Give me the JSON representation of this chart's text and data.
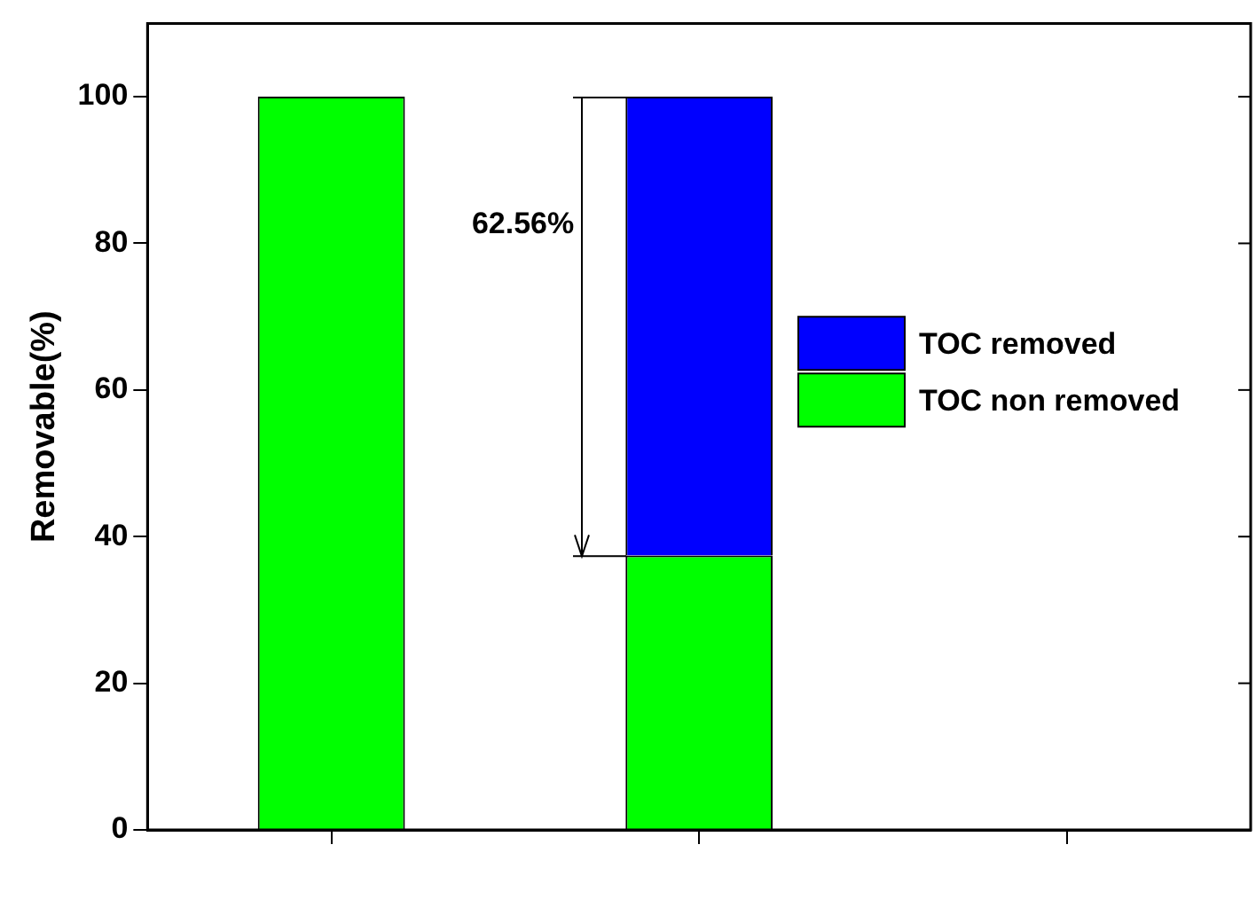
{
  "chart_data": {
    "type": "bar",
    "stacked": true,
    "ylabel": "Removable(%)",
    "categories": [
      null,
      null,
      null
    ],
    "series": [
      {
        "name": "TOC non removed",
        "color": "#00ff00",
        "values": [
          100,
          37.44,
          null
        ]
      },
      {
        "name": "TOC removed",
        "color": "#0000ff",
        "values": [
          null,
          62.56,
          null
        ]
      }
    ],
    "ylim": [
      0,
      110
    ],
    "yticks": [
      0,
      20,
      40,
      60,
      80,
      100
    ],
    "tick_labels": "y",
    "grid": false,
    "legend": "right",
    "annotations": [
      "62.56%"
    ]
  }
}
